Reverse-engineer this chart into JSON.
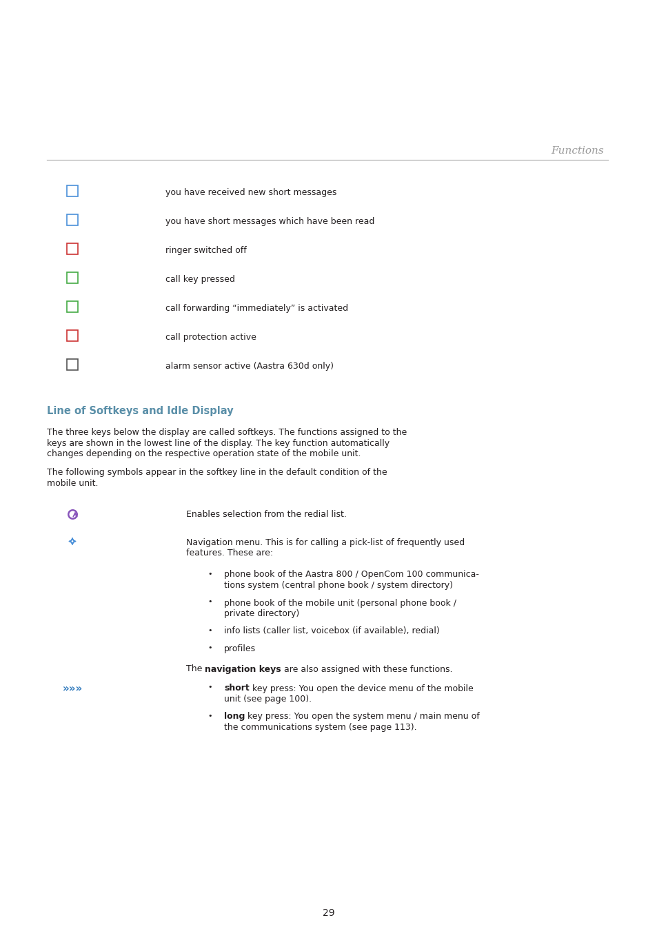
{
  "bg": "#ffffff",
  "tc": "#231f20",
  "hc": "#9a9a9a",
  "sc": "#5a8fa8",
  "lc": "#bbbbbb",
  "page_num": "29",
  "header": "Functions",
  "section_title": "Line of Softkeys and Idle Display",
  "icon_rows": [
    "you have received new short messages",
    "you have short messages which have been read",
    "ringer switched off",
    "call key pressed",
    "call forwarding “immediately” is activated",
    "call protection active",
    "alarm sensor active (Aastra 630d only)"
  ],
  "para1": [
    "The three keys below the display are called softkeys. The functions assigned to the",
    "keys are shown in the lowest line of the display. The key function automatically",
    "changes depending on the respective operation state of the mobile unit."
  ],
  "para2": [
    "The following symbols appear in the softkey line in the default condition of the",
    "mobile unit."
  ],
  "bi1": "Enables selection from the redial list.",
  "bi2": [
    "Navigation menu. This is for calling a pick-list of frequently used",
    "features. These are:"
  ],
  "bullets": [
    [
      "phone book of the Aastra 800 / OpenCom 100 communica-",
      "tions system (central phone book / system directory)"
    ],
    [
      "phone book of the mobile unit (personal phone book /",
      "private directory)"
    ],
    [
      "info lists (caller list, voicebox (if available), redial)"
    ],
    [
      "profiles"
    ]
  ],
  "nav_pre": "The ",
  "nav_bold": "navigation keys",
  "nav_post": " are also assigned with these functions.",
  "arr": [
    {
      "b": "short",
      "t": " key press: You open the device menu of the mobile",
      "t2": "unit (see page 100)."
    },
    {
      "b": "long",
      "t": " key press: You open the system menu / main menu of",
      "t2": "the communications system (see page 113)."
    }
  ]
}
